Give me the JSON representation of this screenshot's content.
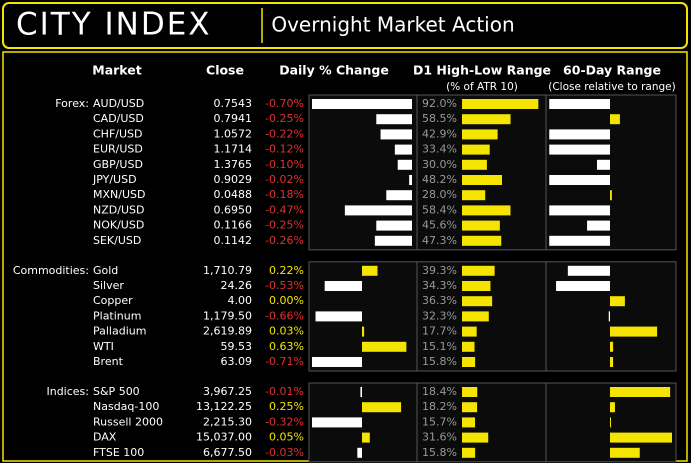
{
  "header": {
    "logo": "CITY INDEX",
    "title": "Overnight Market Action"
  },
  "columns": {
    "market": "Market",
    "close": "Close",
    "change": "Daily % Change",
    "range": "D1 High-Low Range",
    "range_sub": "(% of ATR 10)",
    "range60": "60-Day Range",
    "range60_sub": "(Close relative to range)"
  },
  "groups": [
    {
      "label": "Forex:",
      "rows": [
        {
          "name": "AUD/USD",
          "close": "0.7543",
          "change": {
            "value": -0.7,
            "label": "-0.70%"
          },
          "atr": {
            "value": 92.0,
            "label": "92.0%"
          },
          "range60": -98
        },
        {
          "name": "CAD/USD",
          "close": "0.7941",
          "change": {
            "value": -0.25,
            "label": "-0.25%"
          },
          "atr": {
            "value": 58.5,
            "label": "58.5%"
          },
          "range60": 16
        },
        {
          "name": "CHF/USD",
          "close": "1.0572",
          "change": {
            "value": -0.22,
            "label": "-0.22%"
          },
          "atr": {
            "value": 42.9,
            "label": "42.9%"
          },
          "range60": -98
        },
        {
          "name": "EUR/USD",
          "close": "1.1714",
          "change": {
            "value": -0.12,
            "label": "-0.12%"
          },
          "atr": {
            "value": 33.4,
            "label": "33.4%"
          },
          "range60": -98
        },
        {
          "name": "GBP/USD",
          "close": "1.3765",
          "change": {
            "value": -0.1,
            "label": "-0.10%"
          },
          "atr": {
            "value": 30.0,
            "label": "30.0%"
          },
          "range60": -21
        },
        {
          "name": "JPY/USD",
          "close": "0.9029",
          "change": {
            "value": -0.02,
            "label": "-0.02%"
          },
          "atr": {
            "value": 48.2,
            "label": "48.2%"
          },
          "range60": -98
        },
        {
          "name": "MXN/USD",
          "close": "0.0488",
          "change": {
            "value": -0.18,
            "label": "-0.18%"
          },
          "atr": {
            "value": 28.0,
            "label": "28.0%"
          },
          "range60": 3
        },
        {
          "name": "NZD/USD",
          "close": "0.6950",
          "change": {
            "value": -0.47,
            "label": "-0.47%"
          },
          "atr": {
            "value": 58.4,
            "label": "58.4%"
          },
          "range60": -98
        },
        {
          "name": "NOK/USD",
          "close": "0.1166",
          "change": {
            "value": -0.25,
            "label": "-0.25%"
          },
          "atr": {
            "value": 45.6,
            "label": "45.6%"
          },
          "range60": -37
        },
        {
          "name": "SEK/USD",
          "close": "0.1142",
          "change": {
            "value": -0.26,
            "label": "-0.26%"
          },
          "atr": {
            "value": 47.3,
            "label": "47.3%"
          },
          "range60": -98
        }
      ]
    },
    {
      "label": "Commodities:",
      "rows": [
        {
          "name": "Gold",
          "close": "1,710.79",
          "change": {
            "value": 0.22,
            "label": "0.22%"
          },
          "atr": {
            "value": 39.3,
            "label": "39.3%"
          },
          "range60": -68
        },
        {
          "name": "Silver",
          "close": "24.26",
          "change": {
            "value": -0.53,
            "label": "-0.53%"
          },
          "atr": {
            "value": 34.3,
            "label": "34.3%"
          },
          "range60": -87
        },
        {
          "name": "Copper",
          "close": "4.00",
          "change": {
            "value": 0.0,
            "label": "0.00%"
          },
          "atr": {
            "value": 36.3,
            "label": "36.3%"
          },
          "range60": 24
        },
        {
          "name": "Platinum",
          "close": "1,179.50",
          "change": {
            "value": -0.66,
            "label": "-0.66%"
          },
          "atr": {
            "value": 32.3,
            "label": "32.3%"
          },
          "range60": -2
        },
        {
          "name": "Palladium",
          "close": "2,619.89",
          "change": {
            "value": 0.03,
            "label": "0.03%"
          },
          "atr": {
            "value": 17.7,
            "label": "17.7%"
          },
          "range60": 76
        },
        {
          "name": "WTI",
          "close": "59.53",
          "change": {
            "value": 0.63,
            "label": "0.63%"
          },
          "atr": {
            "value": 15.1,
            "label": "15.1%"
          },
          "range60": 5
        },
        {
          "name": "Brent",
          "close": "63.09",
          "change": {
            "value": -0.71,
            "label": "-0.71%"
          },
          "atr": {
            "value": 15.8,
            "label": "15.8%"
          },
          "range60": 5
        }
      ]
    },
    {
      "label": "Indices:",
      "rows": [
        {
          "name": "S&P 500",
          "close": "3,967.25",
          "change": {
            "value": -0.01,
            "label": "-0.01%"
          },
          "atr": {
            "value": 18.4,
            "label": "18.4%"
          },
          "range60": 97
        },
        {
          "name": "Nasdaq-100",
          "close": "13,122.25",
          "change": {
            "value": 0.25,
            "label": "0.25%"
          },
          "atr": {
            "value": 18.2,
            "label": "18.2%"
          },
          "range60": 8
        },
        {
          "name": "Russell 2000",
          "close": "2,215.30",
          "change": {
            "value": -0.32,
            "label": "-0.32%"
          },
          "atr": {
            "value": 15.7,
            "label": "15.7%"
          },
          "range60": 1
        },
        {
          "name": "DAX",
          "close": "15,037.00",
          "change": {
            "value": 0.05,
            "label": "0.05%"
          },
          "atr": {
            "value": 31.6,
            "label": "31.6%"
          },
          "range60": 100
        },
        {
          "name": "FTSE 100",
          "close": "6,677.50",
          "change": {
            "value": -0.03,
            "label": "-0.03%"
          },
          "atr": {
            "value": 15.8,
            "label": "15.8%"
          },
          "range60": 48
        }
      ]
    }
  ]
}
